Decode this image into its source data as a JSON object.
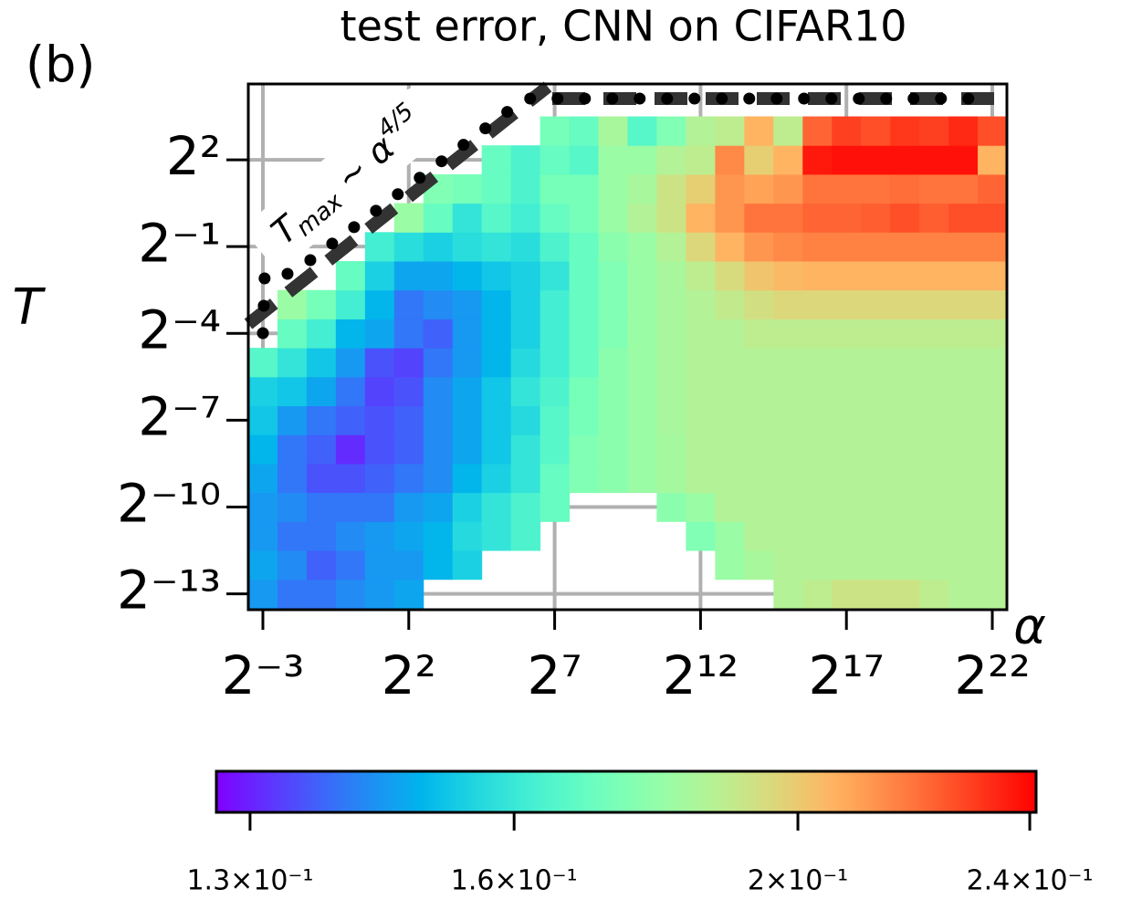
{
  "chart_data": {
    "type": "heatmap",
    "panel_label": "(b)",
    "title": "test error, CNN on CIFAR10",
    "xlabel": "α",
    "ylabel": "T",
    "annotation": {
      "base": "T",
      "sub": "max",
      "mid": " ~ α",
      "sup": "4/5"
    },
    "xscale": "log2",
    "yscale": "log2",
    "grid": true,
    "colormap": "rainbow",
    "x": [
      0.125,
      0.25,
      0.5,
      1,
      2,
      4,
      8,
      16,
      32,
      64,
      128,
      256,
      512,
      1024,
      2048,
      4096,
      8192,
      16384,
      32768,
      65536,
      131072,
      262144,
      524288,
      1048576,
      2097152,
      4194304
    ],
    "y": [
      0.0001220703125,
      0.000244140625,
      0.00048828125,
      0.0009765625,
      0.001953125,
      0.00390625,
      0.0078125,
      0.015625,
      0.03125,
      0.0625,
      0.125,
      0.25,
      0.5,
      1,
      2,
      4,
      8
    ],
    "z": [
      [
        0.1444,
        0.1398,
        0.1398,
        0.1425,
        0.1444,
        0.1462,
        null,
        null,
        null,
        null,
        null,
        null,
        null,
        null,
        null,
        null,
        null,
        null,
        0.1865,
        0.1889,
        0.1926,
        0.1926,
        0.1926,
        0.1889,
        0.1865,
        0.1865
      ],
      [
        0.1462,
        0.1425,
        0.1371,
        0.1398,
        0.1444,
        0.1444,
        0.1491,
        0.1539,
        null,
        null,
        null,
        null,
        null,
        null,
        null,
        null,
        0.1807,
        0.1842,
        0.1865,
        0.1865,
        0.1865,
        0.1865,
        0.1865,
        0.1865,
        0.1865,
        0.1865
      ],
      [
        0.1444,
        0.1398,
        0.1398,
        0.1425,
        0.1444,
        0.1462,
        0.1491,
        0.1559,
        0.1589,
        0.1641,
        null,
        null,
        null,
        null,
        null,
        0.175,
        0.1807,
        0.1865,
        0.1865,
        0.1865,
        0.1865,
        0.1865,
        0.1865,
        0.1865,
        0.1865,
        0.1865
      ],
      [
        0.1444,
        0.1425,
        0.1398,
        0.1398,
        0.1398,
        0.1444,
        0.1462,
        0.1539,
        0.1589,
        0.1641,
        0.1694,
        null,
        null,
        null,
        0.1772,
        0.1807,
        0.1865,
        0.1865,
        0.1865,
        0.1865,
        0.1865,
        0.1865,
        0.1865,
        0.1865,
        0.1865,
        0.1865
      ],
      [
        0.1462,
        0.1398,
        0.1354,
        0.1354,
        0.1371,
        0.1398,
        0.1425,
        0.1491,
        0.1539,
        0.1589,
        0.1694,
        0.175,
        0.1772,
        0.1807,
        0.183,
        0.1865,
        0.1865,
        0.1865,
        0.1865,
        0.1865,
        0.1865,
        0.1865,
        0.1865,
        0.1865,
        0.1865,
        0.1865
      ],
      [
        0.1491,
        0.1398,
        0.1371,
        0.1311,
        0.1354,
        0.1371,
        0.1425,
        0.1462,
        0.152,
        0.1589,
        0.1662,
        0.175,
        0.1772,
        0.1807,
        0.183,
        0.1865,
        0.1865,
        0.1865,
        0.1865,
        0.1865,
        0.1865,
        0.1865,
        0.1865,
        0.1865,
        0.1865,
        0.1865
      ],
      [
        0.152,
        0.1444,
        0.1398,
        0.1371,
        0.1354,
        0.1371,
        0.1425,
        0.1462,
        0.152,
        0.1559,
        0.1662,
        0.1727,
        0.1772,
        0.1807,
        0.1842,
        0.1865,
        0.1865,
        0.1865,
        0.1865,
        0.1865,
        0.1865,
        0.1865,
        0.1865,
        0.1865,
        0.1865,
        0.1865
      ],
      [
        0.1539,
        0.152,
        0.1462,
        0.1398,
        0.1337,
        0.1354,
        0.1425,
        0.1462,
        0.152,
        0.1589,
        0.1641,
        0.1727,
        0.1772,
        0.1807,
        0.1842,
        0.1865,
        0.1865,
        0.1865,
        0.1865,
        0.1865,
        0.1865,
        0.1865,
        0.1865,
        0.1865,
        0.1865,
        0.1865
      ],
      [
        0.1662,
        0.1589,
        0.152,
        0.1444,
        0.1354,
        0.1337,
        0.1398,
        0.1444,
        0.1491,
        0.1559,
        0.162,
        0.1694,
        0.1772,
        0.1807,
        0.1842,
        0.1865,
        0.1865,
        0.1865,
        0.1865,
        0.1865,
        0.1865,
        0.1865,
        0.1865,
        0.1865,
        0.1865,
        0.1865
      ],
      [
        null,
        0.1694,
        0.162,
        0.1491,
        0.1462,
        0.1398,
        0.1371,
        0.1444,
        0.1491,
        0.1539,
        0.162,
        0.1694,
        0.175,
        0.1807,
        0.1842,
        0.1865,
        0.1865,
        0.1889,
        0.1889,
        0.1889,
        0.1889,
        0.1889,
        0.1889,
        0.1889,
        0.1889,
        0.1889
      ],
      [
        null,
        0.1807,
        0.1727,
        0.162,
        0.1491,
        0.1398,
        0.1425,
        0.1444,
        0.1491,
        0.1539,
        0.162,
        0.1694,
        0.175,
        0.1807,
        0.1842,
        0.1865,
        0.1901,
        0.1938,
        0.1963,
        0.1963,
        0.1963,
        0.1963,
        0.1963,
        0.1963,
        0.1963,
        0.1963
      ],
      [
        null,
        null,
        null,
        0.1694,
        0.1539,
        0.1462,
        0.1462,
        0.1491,
        0.152,
        0.1539,
        0.1589,
        0.1694,
        0.175,
        0.1807,
        0.1842,
        0.1889,
        0.1951,
        0.2014,
        0.204,
        0.2053,
        0.2053,
        0.2053,
        0.2053,
        0.2053,
        0.2053,
        0.2053
      ],
      [
        null,
        null,
        null,
        null,
        0.162,
        0.1569,
        0.1539,
        0.1569,
        0.1589,
        0.1569,
        0.1641,
        0.1694,
        0.1772,
        0.1807,
        0.1865,
        0.1963,
        0.2053,
        0.212,
        0.2148,
        0.2161,
        0.2161,
        0.2161,
        0.2161,
        0.2161,
        0.2161,
        0.2161
      ],
      [
        null,
        null,
        null,
        null,
        null,
        0.1807,
        0.1694,
        0.1589,
        0.1662,
        0.162,
        0.1694,
        0.1727,
        0.1807,
        0.1865,
        0.1926,
        0.2053,
        0.212,
        0.2189,
        0.2189,
        0.2218,
        0.2218,
        0.2232,
        0.2261,
        0.2232,
        0.2261,
        0.2261
      ],
      [
        null,
        null,
        null,
        null,
        null,
        null,
        0.175,
        0.1727,
        0.1694,
        0.1641,
        0.1727,
        0.1727,
        0.1807,
        0.1842,
        0.1926,
        0.1989,
        0.212,
        0.2093,
        0.212,
        0.2189,
        0.2189,
        0.2189,
        0.2203,
        0.2189,
        0.2189,
        0.2218
      ],
      [
        null,
        null,
        null,
        null,
        null,
        null,
        null,
        null,
        0.1694,
        0.1641,
        0.1694,
        0.1662,
        0.1807,
        0.1807,
        0.1865,
        0.1889,
        0.2148,
        0.1989,
        0.2053,
        0.2364,
        0.2379,
        0.2379,
        0.2379,
        0.2379,
        0.2379,
        0.2053
      ],
      [
        null,
        null,
        null,
        null,
        null,
        null,
        null,
        null,
        null,
        null,
        0.1727,
        0.1694,
        0.1842,
        0.1662,
        0.175,
        0.1865,
        0.1889,
        0.2053,
        0.1889,
        0.2218,
        0.229,
        0.2261,
        0.2304,
        0.229,
        0.2334,
        0.2261
      ]
    ],
    "xlim": [
      0.0884,
      5931642
    ],
    "ylim": [
      8.34e-05,
      24.6
    ],
    "xticks": [
      {
        "value": 0.125,
        "label": "2⁻³"
      },
      {
        "value": 4,
        "label": "2²"
      },
      {
        "value": 128,
        "label": "2⁷"
      },
      {
        "value": 4096,
        "label": "2¹²"
      },
      {
        "value": 131072,
        "label": "2¹⁷"
      },
      {
        "value": 4194304,
        "label": "2²²"
      }
    ],
    "yticks": [
      {
        "value": 4,
        "label": "2²"
      },
      {
        "value": 0.5,
        "label": "2⁻¹"
      },
      {
        "value": 0.0625,
        "label": "2⁻⁴"
      },
      {
        "value": 0.0078125,
        "label": "2⁻⁷"
      },
      {
        "value": 0.0009765625,
        "label": "2⁻¹⁰"
      },
      {
        "value": 0.0001220703125,
        "label": "2⁻¹³"
      }
    ],
    "colorbar": {
      "lim": [
        0.1266,
        0.2412
      ],
      "log": true,
      "ticks": [
        {
          "value": 0.13,
          "label": "1.3×10⁻¹"
        },
        {
          "value": 0.16,
          "label": "1.6×10⁻¹"
        },
        {
          "value": 0.2,
          "label": "2×10⁻¹"
        },
        {
          "value": 0.24,
          "label": "2.4×10⁻¹"
        }
      ]
    }
  }
}
